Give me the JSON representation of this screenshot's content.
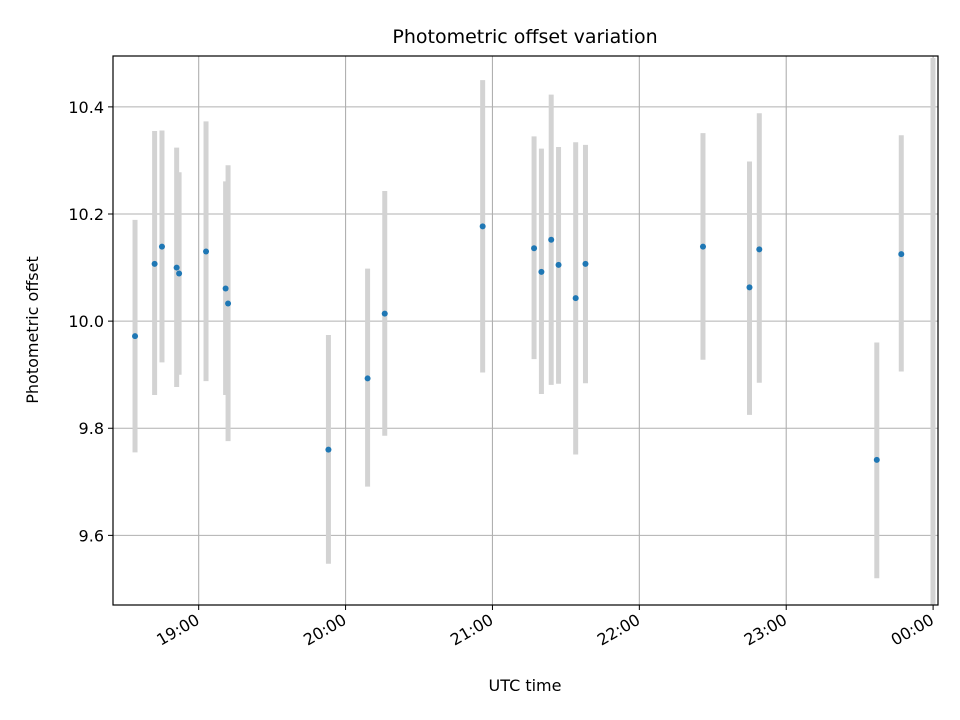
{
  "chart_data": {
    "type": "scatter",
    "title": "Photometric offset variation",
    "xlabel": "UTC time",
    "ylabel": "Photometric offset",
    "grid": true,
    "xlim": [
      "18:25",
      "00:02"
    ],
    "ylim": [
      9.47,
      10.495
    ],
    "xticks": [
      "19:00",
      "20:00",
      "21:00",
      "22:00",
      "23:00",
      "00:00"
    ],
    "yticks": [
      9.6,
      9.8,
      10.0,
      10.2,
      10.4
    ],
    "marker_color": "#1f77b4",
    "errorbar_color": "#d3d3d3",
    "points": [
      {
        "t": "18:34",
        "y": 9.972,
        "lo": 9.755,
        "hi": 10.189
      },
      {
        "t": "18:42",
        "y": 10.107,
        "lo": 9.862,
        "hi": 10.355
      },
      {
        "t": "18:45",
        "y": 10.139,
        "lo": 9.923,
        "hi": 10.356
      },
      {
        "t": "18:51",
        "y": 10.1,
        "lo": 9.877,
        "hi": 10.324
      },
      {
        "t": "18:52",
        "y": 10.089,
        "lo": 9.9,
        "hi": 10.278
      },
      {
        "t": "19:03",
        "y": 10.13,
        "lo": 9.888,
        "hi": 10.373
      },
      {
        "t": "19:11",
        "y": 10.061,
        "lo": 9.862,
        "hi": 10.261
      },
      {
        "t": "19:12",
        "y": 10.033,
        "lo": 9.776,
        "hi": 10.291
      },
      {
        "t": "19:53",
        "y": 9.76,
        "lo": 9.547,
        "hi": 9.974
      },
      {
        "t": "20:09",
        "y": 9.893,
        "lo": 9.691,
        "hi": 10.098
      },
      {
        "t": "20:16",
        "y": 10.014,
        "lo": 9.786,
        "hi": 10.243
      },
      {
        "t": "20:56",
        "y": 10.177,
        "lo": 9.904,
        "hi": 10.45
      },
      {
        "t": "21:17",
        "y": 10.136,
        "lo": 9.929,
        "hi": 10.345
      },
      {
        "t": "21:20",
        "y": 10.092,
        "lo": 9.864,
        "hi": 10.322
      },
      {
        "t": "21:24",
        "y": 10.152,
        "lo": 9.881,
        "hi": 10.423
      },
      {
        "t": "21:27",
        "y": 10.105,
        "lo": 9.883,
        "hi": 10.325
      },
      {
        "t": "21:34",
        "y": 10.043,
        "lo": 9.751,
        "hi": 10.334
      },
      {
        "t": "21:38",
        "y": 10.107,
        "lo": 9.884,
        "hi": 10.329
      },
      {
        "t": "22:26",
        "y": 10.139,
        "lo": 9.928,
        "hi": 10.351
      },
      {
        "t": "22:45",
        "y": 10.063,
        "lo": 9.825,
        "hi": 10.298
      },
      {
        "t": "22:49",
        "y": 10.134,
        "lo": 9.885,
        "hi": 10.388
      },
      {
        "t": "23:37",
        "y": 9.741,
        "lo": 9.52,
        "hi": 9.96
      },
      {
        "t": "23:47",
        "y": 10.125,
        "lo": 9.906,
        "hi": 10.347
      }
    ]
  }
}
